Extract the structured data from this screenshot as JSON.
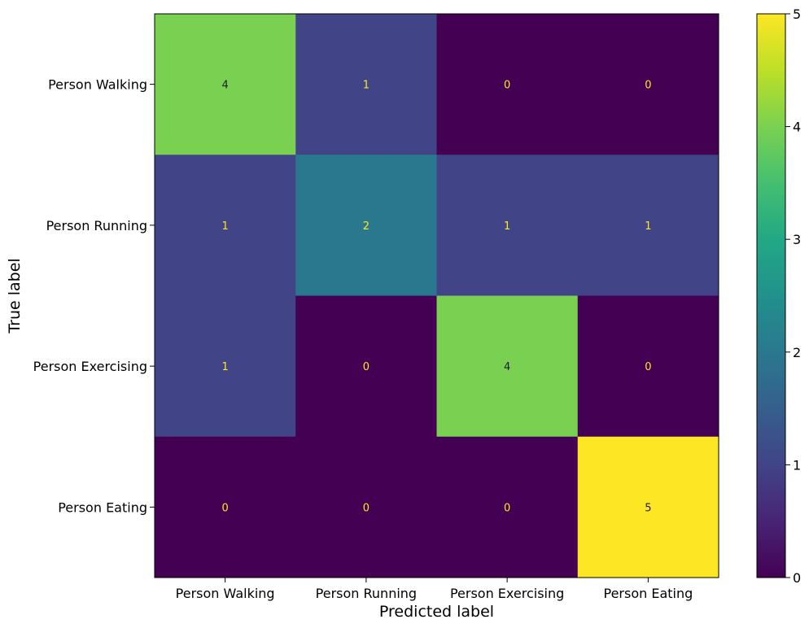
{
  "chart_data": {
    "type": "heatmap",
    "subtype": "confusion-matrix",
    "title": "",
    "xlabel": "Predicted label",
    "ylabel": "True label",
    "x_categories": [
      "Person Walking",
      "Person Running",
      "Person Exercising",
      "Person Eating"
    ],
    "y_categories": [
      "Person Walking",
      "Person Running",
      "Person Exercising",
      "Person Eating"
    ],
    "matrix": [
      [
        4,
        1,
        0,
        0
      ],
      [
        1,
        2,
        1,
        1
      ],
      [
        1,
        0,
        4,
        0
      ],
      [
        0,
        0,
        0,
        5
      ]
    ],
    "colormap": "viridis",
    "colorbar": {
      "min": 0,
      "max": 5,
      "ticks": [
        "0",
        "1",
        "2",
        "3",
        "4",
        "5"
      ]
    },
    "grid": false,
    "legend": "colorbar-right"
  }
}
